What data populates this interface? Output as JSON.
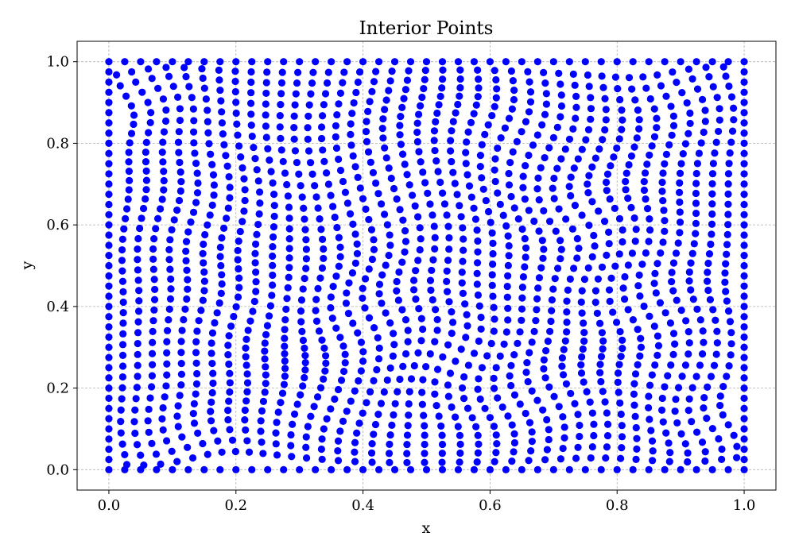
{
  "chart_data": {
    "type": "scatter",
    "title": "Interior Points",
    "xlabel": "x",
    "ylabel": "y",
    "xlim": [
      -0.05,
      1.05
    ],
    "ylim": [
      -0.05,
      1.05
    ],
    "xticks": [
      0.0,
      0.2,
      0.4,
      0.6,
      0.8,
      1.0
    ],
    "yticks": [
      0.0,
      0.2,
      0.4,
      0.6,
      0.8,
      1.0
    ],
    "xtick_labels": [
      "0.0",
      "0.2",
      "0.4",
      "0.6",
      "0.8",
      "1.0"
    ],
    "ytick_labels": [
      "0.0",
      "0.2",
      "0.4",
      "0.6",
      "0.8",
      "1.0"
    ],
    "grid": true,
    "point_color": "#0000ff",
    "series": [
      {
        "name": "interior points",
        "grid_resolution": 40,
        "distortion": [
          {
            "cx": 0.05,
            "cy": 0.93,
            "amp": 0.025,
            "sigma": 0.06
          },
          {
            "cx": 0.42,
            "cy": 0.75,
            "amp": 0.03,
            "sigma": 0.1
          },
          {
            "cx": 0.65,
            "cy": 0.82,
            "amp": -0.025,
            "sigma": 0.09
          },
          {
            "cx": 0.9,
            "cy": 0.93,
            "amp": 0.025,
            "sigma": 0.07
          },
          {
            "cx": 0.15,
            "cy": 0.6,
            "amp": -0.025,
            "sigma": 0.1
          },
          {
            "cx": 0.42,
            "cy": 0.6,
            "amp": 0.03,
            "sigma": 0.09
          },
          {
            "cx": 0.75,
            "cy": 0.62,
            "amp": 0.03,
            "sigma": 0.07
          },
          {
            "cx": 0.22,
            "cy": 0.38,
            "amp": -0.03,
            "sigma": 0.1
          },
          {
            "cx": 0.38,
            "cy": 0.38,
            "amp": 0.03,
            "sigma": 0.08
          },
          {
            "cx": 0.55,
            "cy": 0.28,
            "amp": -0.025,
            "sigma": 0.07
          },
          {
            "cx": 0.85,
            "cy": 0.38,
            "amp": 0.03,
            "sigma": 0.08
          },
          {
            "cx": 0.68,
            "cy": 0.18,
            "amp": 0.03,
            "sigma": 0.09
          },
          {
            "cx": 0.12,
            "cy": 0.05,
            "amp": 0.025,
            "sigma": 0.07
          },
          {
            "cx": 0.35,
            "cy": 0.15,
            "amp": -0.025,
            "sigma": 0.1
          },
          {
            "cx": 0.95,
            "cy": 0.1,
            "amp": 0.025,
            "sigma": 0.06
          }
        ]
      }
    ]
  }
}
